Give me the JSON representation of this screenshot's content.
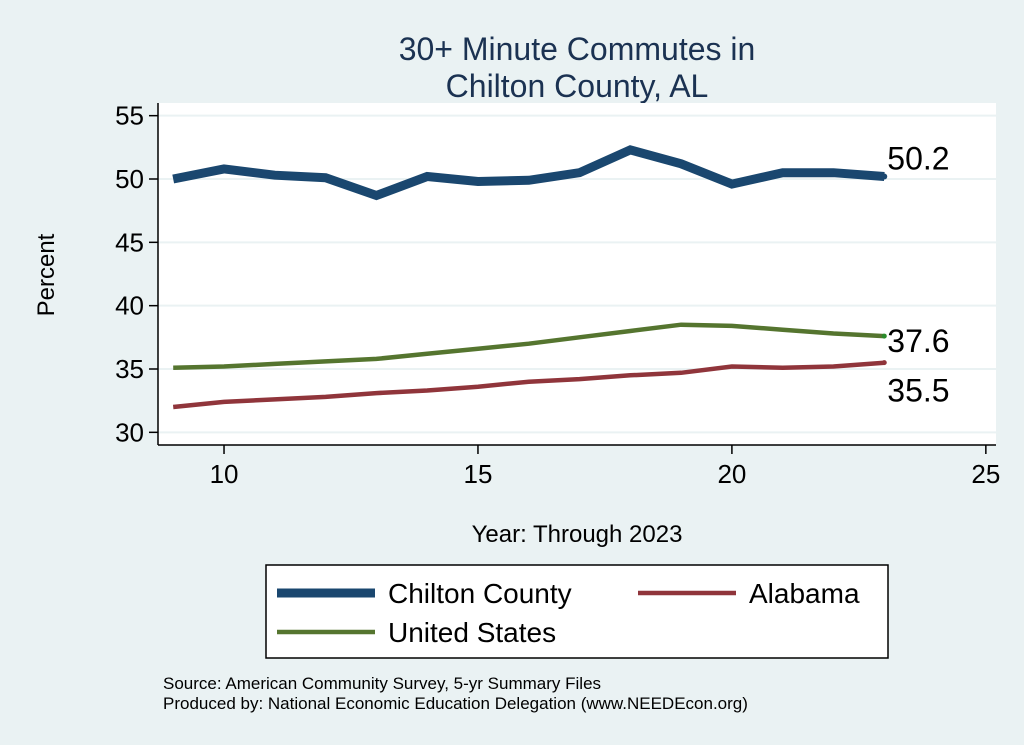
{
  "chart_data": {
    "type": "line",
    "title": [
      "30+ Minute Commutes in",
      "Chilton County, AL"
    ],
    "xlabel": "Year: Through 2023",
    "ylabel": "Percent",
    "xlim": [
      8.7,
      25.2
    ],
    "ylim": [
      29,
      56
    ],
    "xticks": [
      10,
      15,
      20,
      25
    ],
    "yticks": [
      30,
      35,
      40,
      45,
      50,
      55
    ],
    "grid": true,
    "legend_position": "bottom",
    "series": [
      {
        "name": "Chilton County",
        "color": "#1a476f",
        "x": [
          9,
          10,
          11,
          12,
          13,
          14,
          15,
          16,
          17,
          18,
          19,
          20,
          21,
          22,
          23
        ],
        "values": [
          50.0,
          50.8,
          50.3,
          50.1,
          48.7,
          50.2,
          49.8,
          49.9,
          50.5,
          52.3,
          51.2,
          49.6,
          50.5,
          50.5,
          50.2
        ],
        "end_label": "50.2"
      },
      {
        "name": "Alabama",
        "color": "#90353b",
        "x": [
          9,
          10,
          11,
          12,
          13,
          14,
          15,
          16,
          17,
          18,
          19,
          20,
          21,
          22,
          23
        ],
        "values": [
          32.0,
          32.4,
          32.6,
          32.8,
          33.1,
          33.3,
          33.6,
          34.0,
          34.2,
          34.5,
          34.7,
          35.2,
          35.1,
          35.2,
          35.5
        ],
        "end_label": "35.5"
      },
      {
        "name": "United States",
        "color": "#55752f",
        "x": [
          9,
          10,
          11,
          12,
          13,
          14,
          15,
          16,
          17,
          18,
          19,
          20,
          21,
          22,
          23
        ],
        "values": [
          35.1,
          35.2,
          35.4,
          35.6,
          35.8,
          36.2,
          36.6,
          37.0,
          37.5,
          38.0,
          38.5,
          38.4,
          38.1,
          37.8,
          37.6
        ],
        "end_label": "37.6"
      }
    ],
    "legend": {
      "entries": [
        "Chilton County",
        "Alabama",
        "United States"
      ]
    }
  },
  "source_lines": [
    "Source: American Community Survey, 5-yr Summary Files",
    "Produced by: National Economic Education Delegation (www.NEEDEcon.org)"
  ]
}
